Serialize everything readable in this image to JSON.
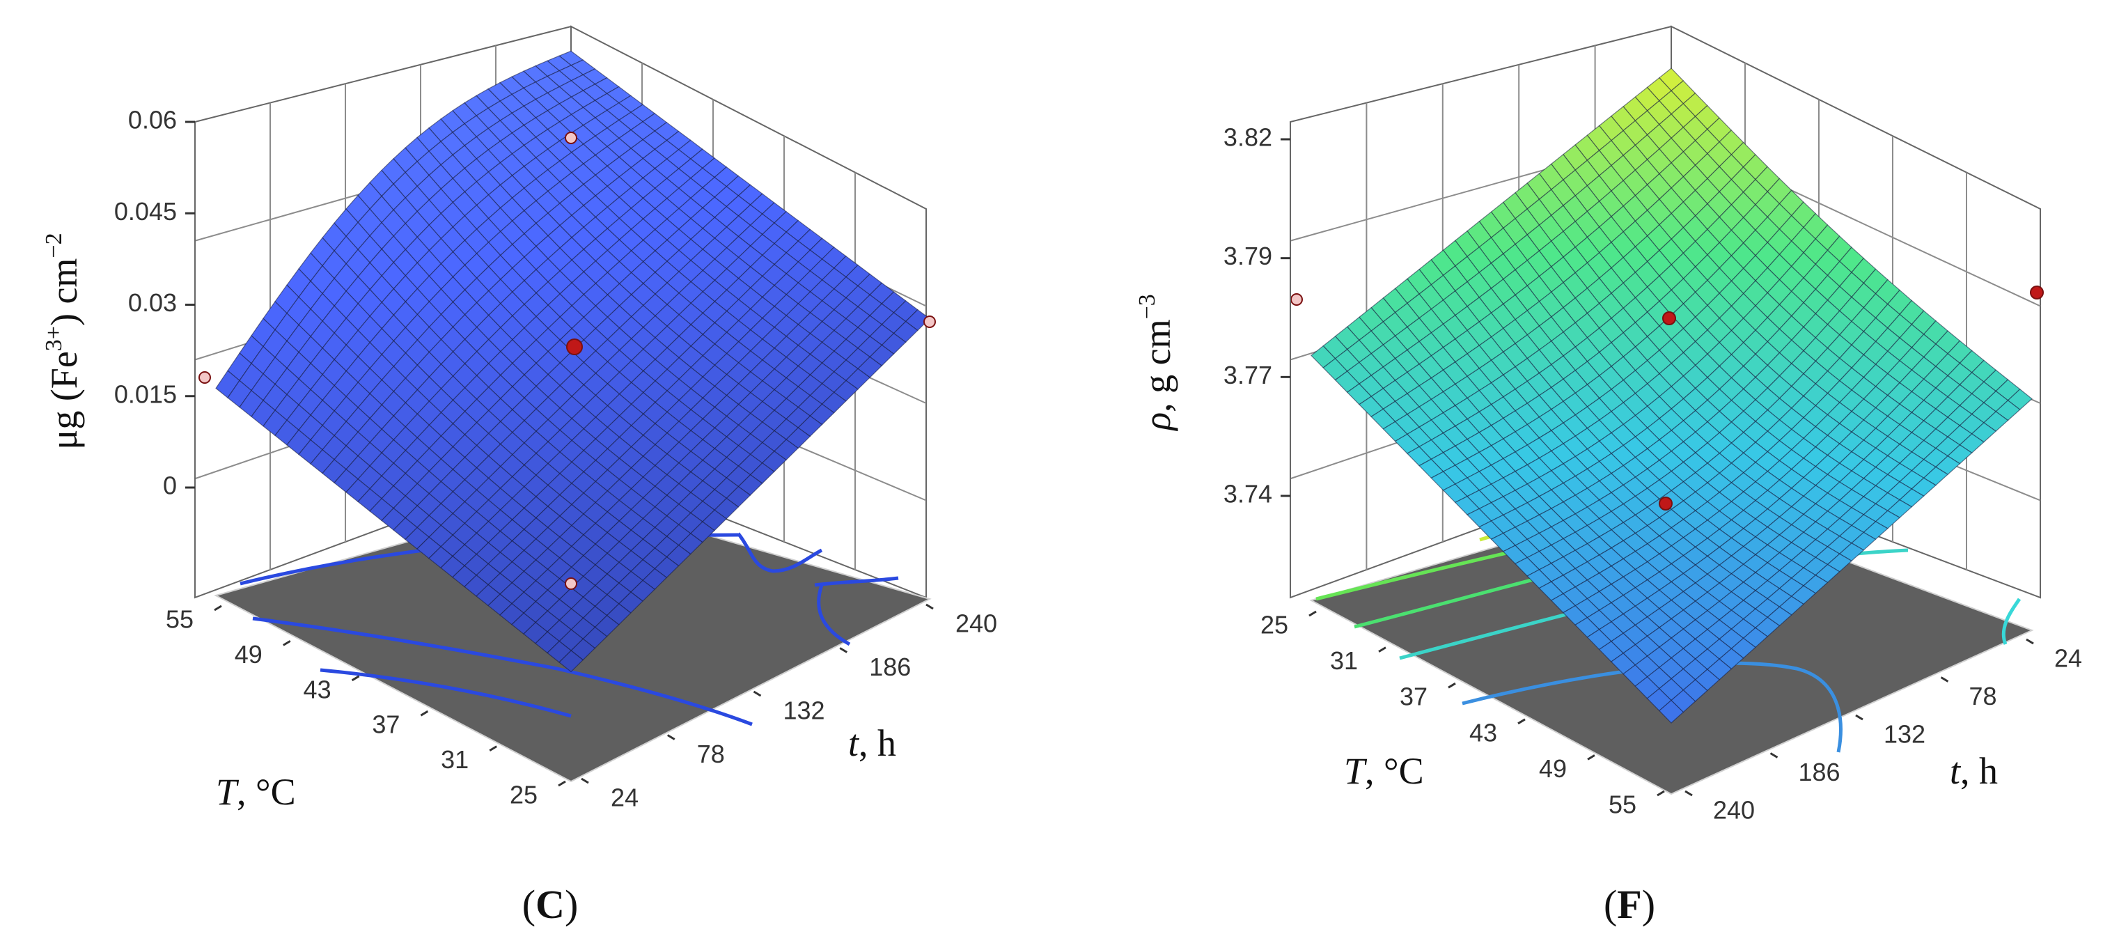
{
  "chart_data": [
    {
      "type": "surface",
      "panel_label": "C",
      "zlabel_pre": "μg (Fe",
      "zlabel_sup": "3+",
      "zlabel_mid": ") cm",
      "zlabel_sup2": "−2",
      "x_axis": {
        "label_var": "T",
        "label_unit": ", °C",
        "ticks": [
          "55",
          "49",
          "43",
          "37",
          "31",
          "25"
        ]
      },
      "y_axis": {
        "label_var": "t",
        "label_unit": ", h",
        "ticks": [
          "24",
          "78",
          "132",
          "186",
          "240"
        ]
      },
      "z_axis": {
        "ticks": [
          "0.06",
          "0.045",
          "0.03",
          "0.015",
          "0"
        ],
        "range": [
          0,
          0.06
        ]
      },
      "surface_color": "#4f6df0",
      "contour_color": "#2a49e0",
      "design_points": [
        {
          "T": 25,
          "t": 240,
          "value": 0.03
        },
        {
          "T": 55,
          "t": 24,
          "value": 0.018
        },
        {
          "T": 25,
          "t": 24,
          "value": 0.057
        },
        {
          "T": 40,
          "t": 132,
          "value": 0.025
        },
        {
          "T": 55,
          "t": 240,
          "value": 0.002
        }
      ]
    },
    {
      "type": "surface",
      "panel_label": "F",
      "zlabel_pre": "ρ",
      "zlabel_mid": ", g cm",
      "zlabel_sup": "−3",
      "x_axis": {
        "label_var": "T",
        "label_unit": ", °C",
        "ticks": [
          "25",
          "31",
          "37",
          "43",
          "49",
          "55"
        ]
      },
      "y_axis": {
        "label_var": "t",
        "label_unit": ", h",
        "ticks": [
          "240",
          "186",
          "132",
          "78",
          "24"
        ]
      },
      "z_axis": {
        "ticks": [
          "3.82",
          "3.79",
          "3.77",
          "3.74"
        ],
        "range": [
          3.74,
          3.82
        ]
      },
      "surface_colormap": [
        "#3e70ea",
        "#38c8e6",
        "#4fe78a",
        "#d8ef3a"
      ],
      "contour_color": "#3bd4c8",
      "design_points": [
        {
          "T": 25,
          "t": 24,
          "value": 3.784
        },
        {
          "T": 55,
          "t": 24,
          "value": 3.781
        },
        {
          "T": 40,
          "t": 132,
          "value": 3.781
        },
        {
          "T": 55,
          "t": 240,
          "value": 3.745
        }
      ]
    }
  ]
}
